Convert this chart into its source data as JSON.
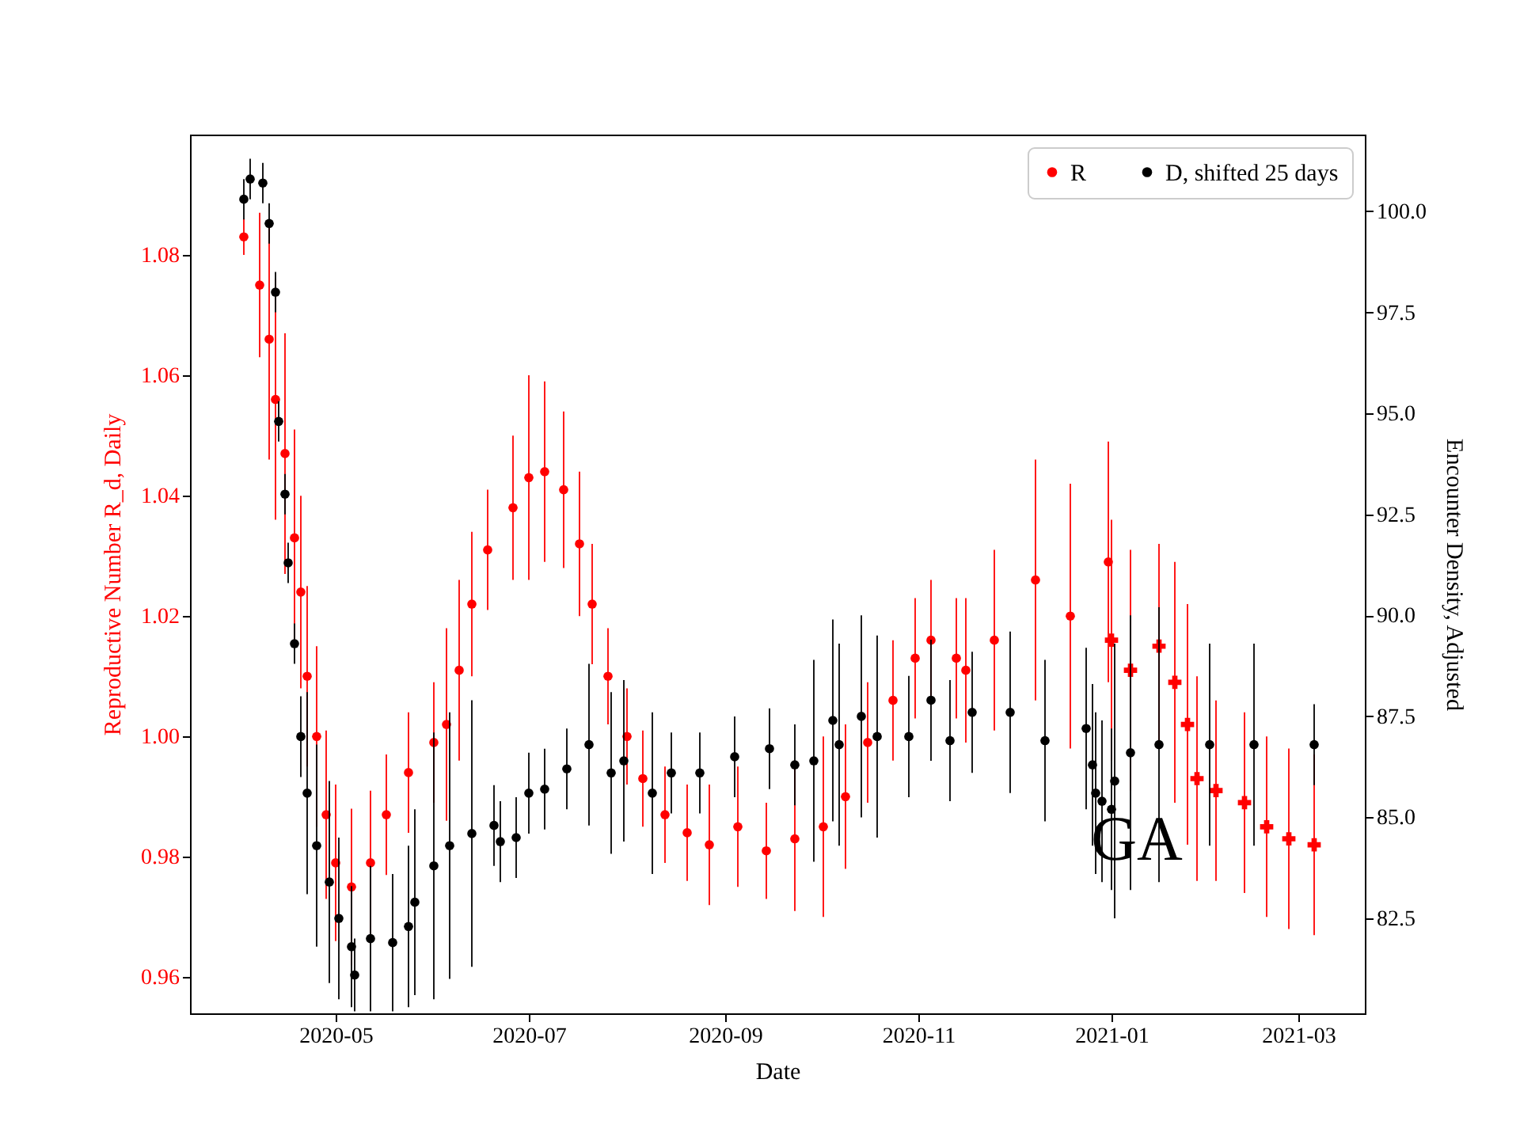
{
  "chart_data": {
    "type": "scatter",
    "xlabel": "Date",
    "ylabel": "Reproductive Number R_d, Daily",
    "y2label": "Encounter Density, Adjusted",
    "legend": "top right",
    "annotations": [
      "GA"
    ],
    "xlim": [
      "2020-03-16",
      "2021-03-22"
    ],
    "xticks": [
      "2020-05",
      "2020-07",
      "2020-09",
      "2020-11",
      "2021-01",
      "2021-03"
    ],
    "ylim": [
      0.954,
      1.1
    ],
    "yticks": [
      0.96,
      0.98,
      {
        "value": 1,
        "label": "1.00"
      },
      1.02,
      1.04,
      1.06,
      1.08
    ],
    "y2lim": [
      80.15,
      101.9
    ],
    "y2ticks": [
      82.5,
      {
        "value": 85,
        "label": "85.0"
      },
      87.5,
      {
        "value": 90,
        "label": "90.0"
      },
      92.5,
      {
        "value": 95,
        "label": "95.0"
      },
      97.5,
      {
        "value": 100,
        "label": "100.0"
      }
    ],
    "series": [
      {
        "name": "R",
        "marker": "circle",
        "color": "#ff0000",
        "x": [
          "2020-04-02",
          "2020-04-07",
          "2020-04-10",
          "2020-04-12",
          "2020-04-15",
          "2020-04-18",
          "2020-04-20",
          "2020-04-22",
          "2020-04-25",
          "2020-04-28",
          "2020-05-01",
          "2020-05-06",
          "2020-05-12",
          "2020-05-17",
          "2020-05-24",
          "2020-06-01",
          "2020-06-05",
          "2020-06-09",
          "2020-06-13",
          "2020-06-18",
          "2020-06-26",
          "2020-07-01",
          "2020-07-06",
          "2020-07-12",
          "2020-07-17",
          "2020-07-21",
          "2020-07-26",
          "2020-08-01",
          "2020-08-06",
          "2020-08-13",
          "2020-08-20",
          "2020-08-27",
          "2020-09-05",
          "2020-09-14",
          "2020-09-23",
          "2020-10-02",
          "2020-10-09",
          "2020-10-16",
          "2020-10-24",
          "2020-10-31",
          "2020-11-05",
          "2020-11-13",
          "2020-11-16",
          "2020-11-25",
          "2020-12-08",
          "2020-12-19",
          "2020-12-31"
        ],
        "values": [
          1.083,
          1.075,
          1.066,
          1.056,
          1.047,
          1.033,
          1.024,
          1.01,
          1.0,
          0.987,
          0.979,
          0.975,
          0.979,
          0.987,
          0.994,
          0.999,
          1.002,
          1.011,
          1.022,
          1.031,
          1.038,
          1.043,
          1.044,
          1.041,
          1.032,
          1.022,
          1.01,
          1.0,
          0.993,
          0.987,
          0.984,
          0.982,
          0.985,
          0.981,
          0.983,
          0.985,
          0.99,
          0.999,
          1.006,
          1.013,
          1.016,
          1.013,
          1.011,
          1.016,
          1.026,
          1.02,
          1.029
        ],
        "errors": [
          0.003,
          0.012,
          0.02,
          0.02,
          0.02,
          0.018,
          0.016,
          0.015,
          0.015,
          0.014,
          0.013,
          0.013,
          0.012,
          0.01,
          0.01,
          0.01,
          0.016,
          0.015,
          0.012,
          0.01,
          0.012,
          0.017,
          0.015,
          0.013,
          0.012,
          0.01,
          0.008,
          0.008,
          0.008,
          0.008,
          0.008,
          0.01,
          0.01,
          0.008,
          0.012,
          0.015,
          0.012,
          0.01,
          0.01,
          0.01,
          0.01,
          0.01,
          0.012,
          0.015,
          0.02,
          0.022,
          0.02
        ]
      },
      {
        "marker": "cross",
        "color": "#ff0000",
        "x": [
          "2021-01-01",
          "2021-01-07",
          "2021-01-16",
          "2021-01-21",
          "2021-01-25",
          "2021-01-28",
          "2021-02-03",
          "2021-02-12",
          "2021-02-19",
          "2021-02-26",
          "2021-03-06"
        ],
        "values": [
          1.016,
          1.011,
          1.015,
          1.009,
          1.002,
          0.993,
          0.991,
          0.989,
          0.985,
          0.983,
          0.982
        ],
        "errors": [
          0.02,
          0.02,
          0.017,
          0.02,
          0.02,
          0.017,
          0.015,
          0.015,
          0.015,
          0.015,
          0.015
        ]
      },
      {
        "name": "D, shifted 25 days",
        "marker": "circle",
        "axis": "y2",
        "color": "#000000",
        "x": [
          "2020-04-02",
          "2020-04-04",
          "2020-04-08",
          "2020-04-10",
          "2020-04-12",
          "2020-04-13",
          "2020-04-15",
          "2020-04-16",
          "2020-04-18",
          "2020-04-20",
          "2020-04-22",
          "2020-04-25",
          "2020-04-29",
          "2020-05-02",
          "2020-05-06",
          "2020-05-07",
          "2020-05-12",
          "2020-05-19",
          "2020-05-24",
          "2020-05-26",
          "2020-06-01",
          "2020-06-06",
          "2020-06-13",
          "2020-06-20",
          "2020-06-22",
          "2020-06-27",
          "2020-07-01",
          "2020-07-06",
          "2020-07-13",
          "2020-07-20",
          "2020-07-27",
          "2020-07-31",
          "2020-08-09",
          "2020-08-15",
          "2020-08-24",
          "2020-09-04",
          "2020-09-15",
          "2020-09-23",
          "2020-09-29",
          "2020-10-05",
          "2020-10-07",
          "2020-10-14",
          "2020-10-19",
          "2020-10-29",
          "2020-11-05",
          "2020-11-11",
          "2020-11-18",
          "2020-11-30",
          "2020-12-11",
          "2020-12-24",
          "2020-12-26",
          "2020-12-27",
          "2020-12-29",
          "2021-01-01",
          "2021-01-02",
          "2021-01-07",
          "2021-01-16",
          "2021-02-01",
          "2021-02-15",
          "2021-03-06"
        ],
        "values": [
          100.3,
          100.8,
          100.7,
          99.7,
          98.0,
          94.8,
          93.0,
          91.3,
          89.3,
          87.0,
          85.6,
          84.3,
          83.4,
          82.5,
          81.8,
          81.1,
          82.0,
          81.9,
          82.3,
          82.9,
          83.8,
          84.3,
          84.6,
          84.8,
          84.4,
          84.5,
          85.6,
          85.7,
          86.2,
          86.8,
          86.1,
          86.4,
          85.6,
          86.1,
          86.1,
          86.5,
          86.7,
          86.3,
          86.4,
          87.4,
          86.8,
          87.5,
          87.0,
          87.0,
          87.9,
          86.9,
          87.6,
          87.6,
          86.9,
          87.2,
          86.3,
          85.6,
          85.4,
          85.2,
          85.9,
          86.6,
          86.8,
          86.8,
          86.8,
          86.8
        ],
        "errors": [
          0.5,
          0.5,
          0.5,
          0.5,
          0.5,
          0.5,
          0.5,
          0.5,
          0.5,
          1,
          2.5,
          2.5,
          2.5,
          2,
          1.5,
          0.9,
          1.8,
          1.7,
          2,
          2.3,
          3.3,
          3.3,
          3.3,
          1,
          1,
          1,
          1,
          1,
          1,
          2,
          2,
          2,
          2,
          1,
          1,
          1,
          1,
          1,
          2.5,
          2.5,
          2.5,
          2.5,
          2.5,
          1.5,
          1.5,
          1.5,
          1.5,
          2,
          2,
          2,
          2,
          2,
          2,
          2,
          3.4,
          3.4,
          3.4,
          2.5,
          2.5,
          1
        ]
      }
    ]
  }
}
